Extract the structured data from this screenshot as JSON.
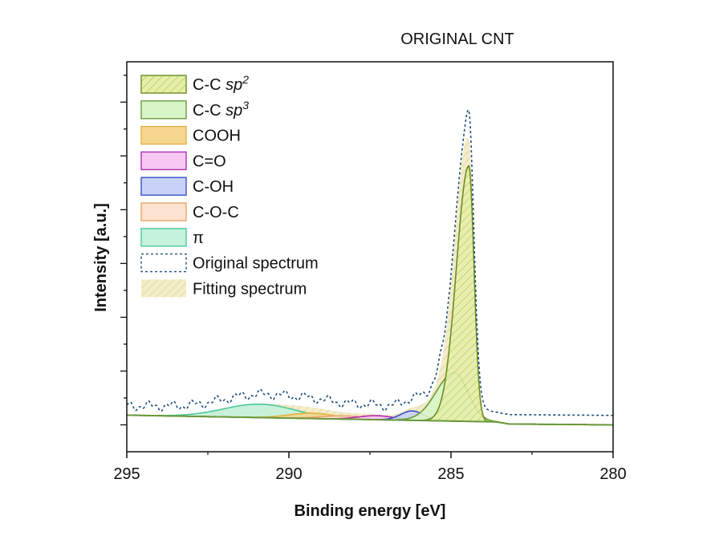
{
  "chart_data": {
    "type": "area",
    "title": "ORIGINAL CNT",
    "xlabel": "Binding energy [eV]",
    "ylabel": "Intensity [a.u.]",
    "xlim": [
      295,
      280
    ],
    "ylim": [
      -0.1,
      1.35
    ],
    "x_reversed": true,
    "x_ticks": [
      295,
      290,
      285,
      280
    ],
    "y_tick_labels_shown": false,
    "grid": false,
    "legend_position": "top-left",
    "colors": {
      "sp2_fill": "#e6efa8",
      "sp2_line": "#6b8e23",
      "sp3_fill": "#d8f5c8",
      "sp3_line": "#6b9a3c",
      "cooh_fill": "#f5d590",
      "cooh_line": "#e3b044",
      "co_fill": "#f7c8f3",
      "co_line": "#b02fb0",
      "coh_fill": "#c8d2f5",
      "coh_line": "#3a4fc8",
      "coc_fill": "#fbe3d0",
      "coc_line": "#eda36a",
      "pi_fill": "#c4f2dc",
      "pi_line": "#4cc79a",
      "original_line": "#1f4e79",
      "fit_fill": "#efe5b5",
      "fit_hatch": "#d6c98a",
      "background_line": "#6b9a3c"
    },
    "series": [
      {
        "name": "C-C sp2",
        "label_base": "C-C ",
        "label_italic": "sp",
        "label_sup": "2",
        "key": "sp2",
        "style": "hatched-fill",
        "peak": {
          "center": 284.45,
          "height": 0.95,
          "width_left": 0.38,
          "width_right": 0.16
        }
      },
      {
        "name": "C-C sp3",
        "label_base": "C-C ",
        "label_italic": "sp",
        "label_sup": "3",
        "key": "sp3",
        "style": "fill",
        "peak": {
          "center": 284.9,
          "height": 0.18,
          "width_left": 0.55,
          "width_right": 0.42
        }
      },
      {
        "name": "COOH",
        "label_base": "COOH",
        "key": "cooh",
        "style": "fill",
        "peak": {
          "center": 289.3,
          "height": 0.02,
          "width_left": 0.7,
          "width_right": 0.7
        }
      },
      {
        "name": "C=O",
        "label_base": "C=O",
        "key": "co",
        "style": "fill",
        "peak": {
          "center": 287.3,
          "height": 0.015,
          "width_left": 0.55,
          "width_right": 0.55
        }
      },
      {
        "name": "C-OH",
        "label_base": "C-OH",
        "key": "coh",
        "style": "fill",
        "peak": {
          "center": 286.2,
          "height": 0.035,
          "width_left": 0.35,
          "width_right": 0.35
        }
      },
      {
        "name": "C-O-C",
        "label_base": "C-O-C",
        "key": "coc",
        "style": "fill",
        "peak": {
          "center": 288.3,
          "height": 0.012,
          "width_left": 0.7,
          "width_right": 0.7
        }
      },
      {
        "name": "π",
        "label_base": "π",
        "key": "pi",
        "style": "fill",
        "peak": {
          "center": 290.9,
          "height": 0.05,
          "width_left": 1.1,
          "width_right": 1.1
        }
      },
      {
        "name": "Original spectrum",
        "label_base": "Original spectrum",
        "key": "original",
        "style": "dashed-line"
      },
      {
        "name": "Fitting spectrum",
        "label_base": "Fitting spectrum",
        "key": "fit",
        "style": "hatched-fill"
      }
    ],
    "background": {
      "x": [
        295,
        283.6,
        283.2,
        280
      ],
      "y": [
        0.036,
        0.011,
        0.003,
        0.0
      ]
    }
  }
}
